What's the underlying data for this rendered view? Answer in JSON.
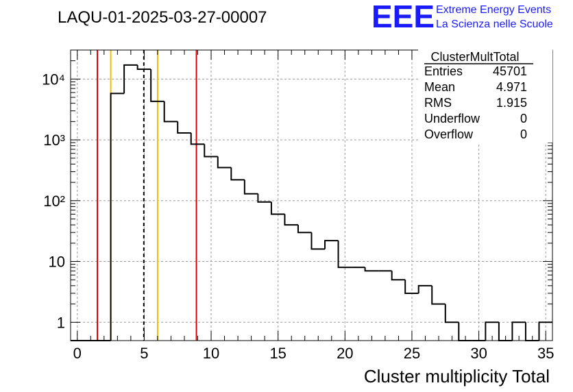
{
  "chart_data": {
    "type": "bar",
    "title": "LAQU-01-2025-03-27-00007",
    "xlabel": "Cluster multiplicity Total",
    "ylabel": "",
    "xlim": [
      -0.5,
      35.5
    ],
    "ylim": [
      0.5,
      30000
    ],
    "yscale": "log",
    "grid": true,
    "bin_width": 1,
    "bin_centers": [
      0,
      1,
      2,
      3,
      4,
      5,
      6,
      7,
      8,
      9,
      10,
      11,
      12,
      13,
      14,
      15,
      16,
      17,
      18,
      19,
      20,
      21,
      22,
      23,
      24,
      25,
      26,
      27,
      28,
      29,
      30,
      31,
      32,
      33,
      34,
      35
    ],
    "values": [
      0,
      0,
      0,
      5800,
      17000,
      14500,
      4300,
      2000,
      1300,
      850,
      530,
      350,
      220,
      130,
      95,
      60,
      40,
      30,
      16,
      22,
      8,
      8,
      7,
      7,
      5,
      3,
      4,
      2,
      1,
      0,
      0,
      1,
      0,
      1,
      0,
      1
    ],
    "x_ticks": [
      "0",
      "5",
      "10",
      "15",
      "20",
      "25",
      "30",
      "35"
    ],
    "y_ticks": [
      "1",
      "10",
      "10²",
      "10³",
      "10⁴"
    ],
    "vertical_lines": [
      {
        "x": 1.5,
        "color": "#e00000",
        "style": "solid"
      },
      {
        "x": 2.5,
        "color": "#f0c000",
        "style": "solid"
      },
      {
        "x": 4.971,
        "color": "#000000",
        "style": "dashed"
      },
      {
        "x": 6.0,
        "color": "#f0c000",
        "style": "solid"
      },
      {
        "x": 8.9,
        "color": "#e00000",
        "style": "solid"
      }
    ],
    "stats": {
      "name": "ClusterMultTotal",
      "rows": [
        {
          "label": "Entries",
          "value": "45701"
        },
        {
          "label": "Mean",
          "value": "4.971"
        },
        {
          "label": "RMS",
          "value": "1.915"
        },
        {
          "label": "Underflow",
          "value": "0"
        },
        {
          "label": "Overflow",
          "value": "0"
        }
      ]
    }
  },
  "logo": {
    "mark": "EEE",
    "line1": "Extreme Energy Events",
    "line2": "La Scienza nelle Scuole",
    "color": "#1a1aff"
  }
}
